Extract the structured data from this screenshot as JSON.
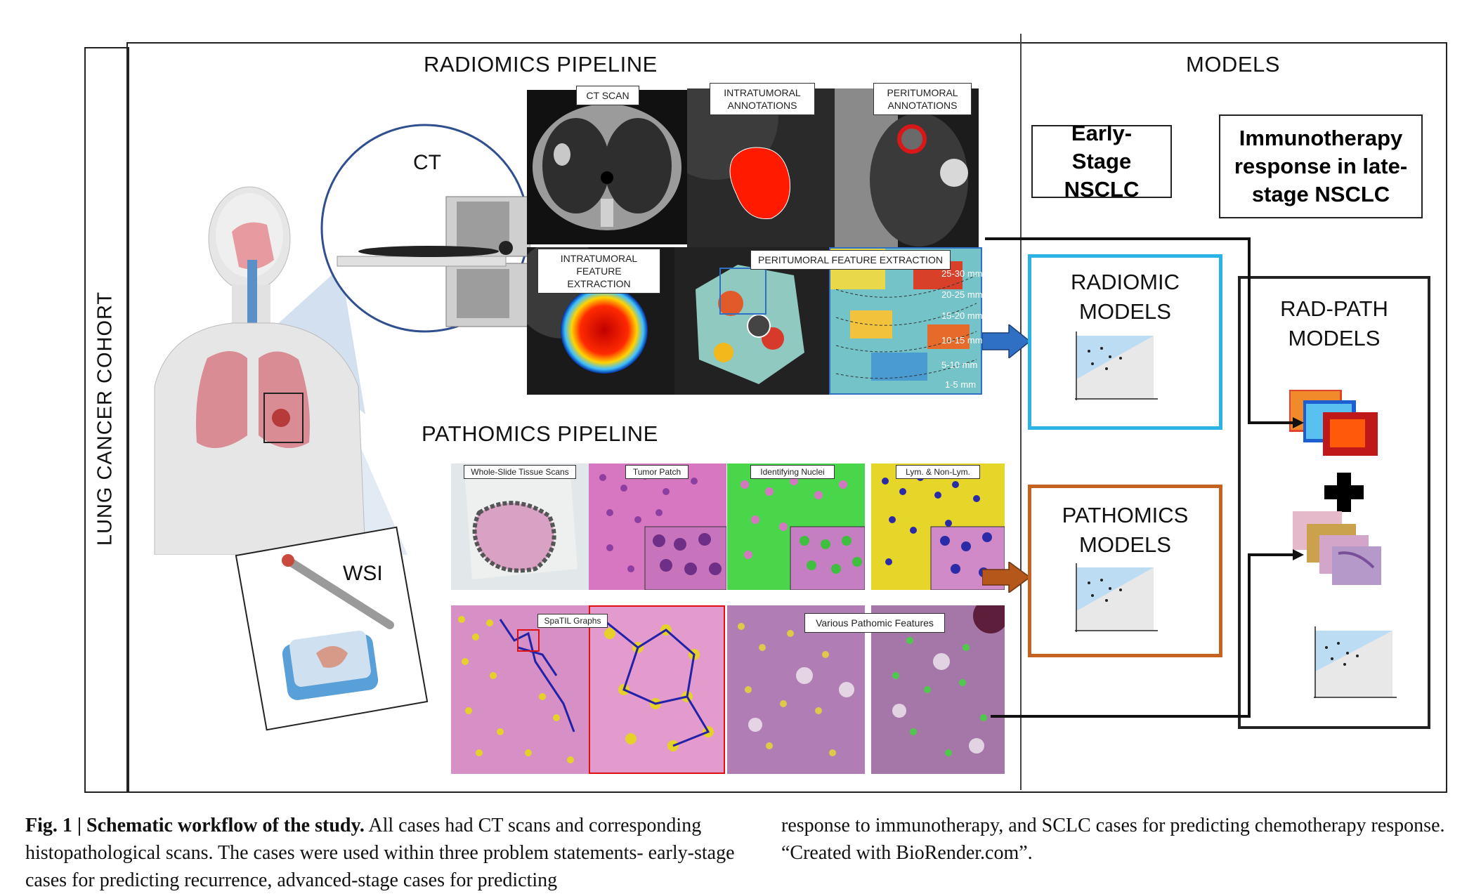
{
  "figure": {
    "cohort_label": "LUNG CANCER COHORT",
    "radiomics": {
      "title": "RADIOMICS PIPELINE",
      "ct_label": "CT",
      "ct_scan": "CT SCAN",
      "intratumoral_annotations": "INTRATUMORAL ANNOTATIONS",
      "peritumoral_annotations": "PERITUMORAL ANNOTATIONS",
      "intratumoral_extraction": "INTRATUMORAL FEATURE EXTRACTION",
      "peritumoral_extraction": "PERITUMORAL FEATURE EXTRACTION",
      "ring_labels": [
        "25-30 mm",
        "20-25 mm",
        "15-20 mm",
        "10-15 mm",
        "5-10 mm",
        "1-5 mm"
      ]
    },
    "pathomics": {
      "title": "PATHOMICS PIPELINE",
      "wsi_label": "WSI",
      "whole_slide": "Whole-Slide Tissue Scans",
      "tumor_patch": "Tumor Patch",
      "identifying_nuclei": "Identifying Nuclei",
      "lym_nonlym": "Lym. & Non-Lym.",
      "spatil": "SpaTIL Graphs",
      "various": "Various Pathomic Features"
    },
    "models": {
      "title": "MODELS",
      "early_stage": "Early-Stage NSCLC",
      "immunotherapy": "Immunotherapy response in late-stage NSCLC",
      "radiomic_models": [
        "RADIOMIC",
        "MODELS"
      ],
      "pathomics_models": [
        "PATHOMICS",
        "MODELS"
      ],
      "radpath_models": [
        "RAD-PATH",
        "MODELS"
      ]
    },
    "colors": {
      "radiomic_border": "#2bb3e6",
      "pathomics_border": "#c4621f",
      "arrow_blue": "#2f6fc4",
      "arrow_brown": "#b5561a"
    }
  },
  "caption": {
    "label": "Fig. 1 | Schematic workflow of the study.",
    "left_text": "All cases had CT scans and corresponding histopathological scans. The cases were used within three problem statements- early-stage cases for predicting recurrence, advanced-stage cases for predicting",
    "right_text": "response to immunotherapy, and SCLC cases for predicting chemotherapy response. “Created with BioRender.com”."
  }
}
